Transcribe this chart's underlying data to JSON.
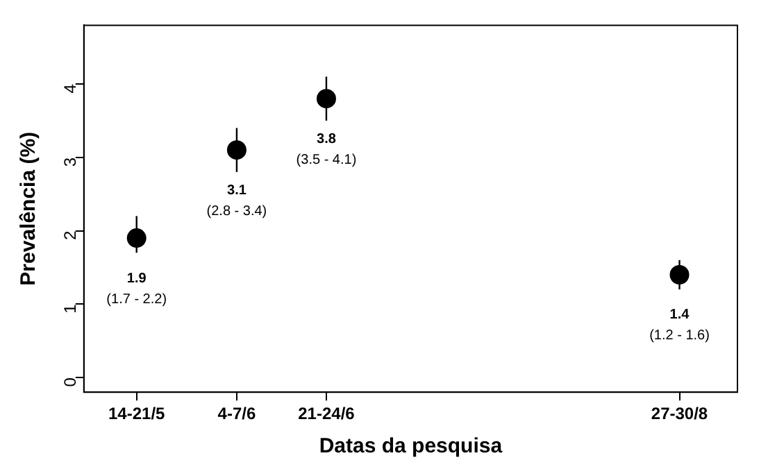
{
  "chart_data": {
    "type": "scatter",
    "xlabel": "Datas da pesquisa",
    "ylabel": "Prevalência (%)",
    "x": [
      "--05-17",
      "--06-05",
      "--06-22",
      "--08-28"
    ],
    "values": [
      1.9,
      3.1,
      3.8,
      1.4
    ],
    "errors": [
      [
        1.7,
        2.2
      ],
      [
        2.8,
        3.4
      ],
      [
        3.5,
        4.1
      ],
      [
        1.2,
        1.6
      ]
    ],
    "color": "#000000",
    "marker": "circle",
    "data_labels": true,
    "annotations": [
      "(1.7 - 2.2)",
      "(2.8 - 3.4)",
      "(3.5 - 4.1)",
      "(1.2 - 1.6)"
    ],
    "xlim": [
      "--05-07",
      "--09-08"
    ],
    "xticks": [
      {
        "value": "--05-17",
        "label": "14-21/5"
      },
      {
        "value": "--06-05",
        "label": "4-7/6"
      },
      {
        "value": "--06-22",
        "label": "21-24/6"
      },
      {
        "value": "--08-28",
        "label": "27-30/8"
      }
    ],
    "ylim": [
      -0.2,
      4.8
    ],
    "yticks": [
      0,
      1,
      2,
      3,
      4
    ],
    "grid": false,
    "legend": false
  }
}
